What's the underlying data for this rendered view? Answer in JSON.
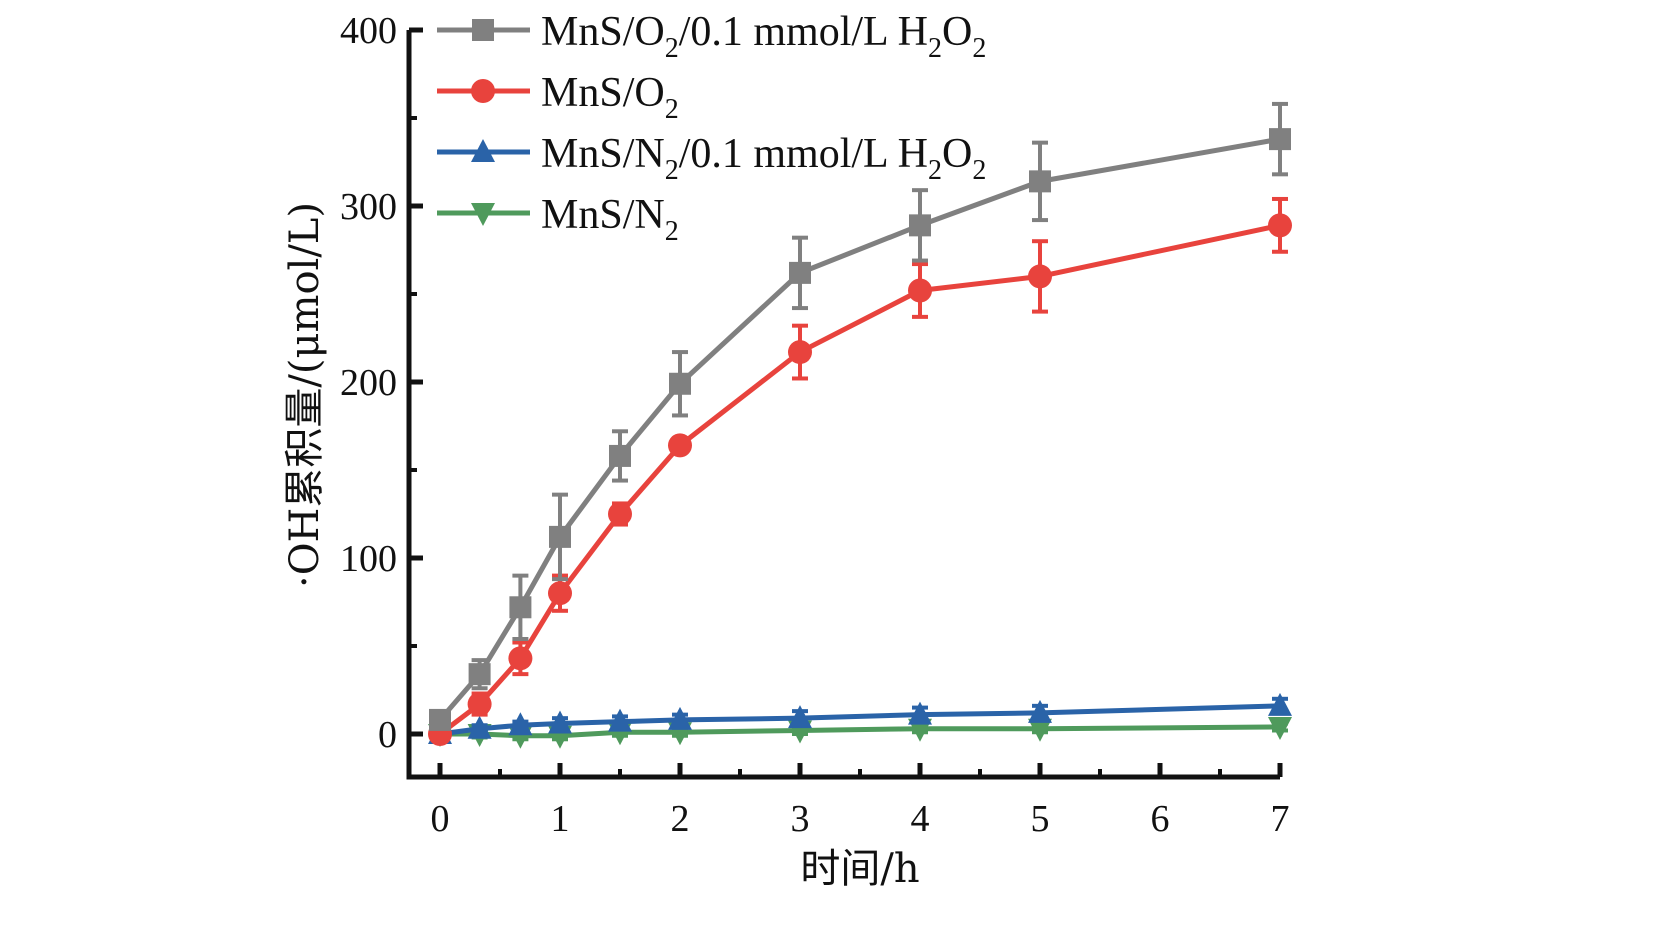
{
  "chart_data": {
    "type": "line",
    "title": "",
    "xlabel": "时间/h",
    "ylabel": "·OH累积量/(μmol/L)",
    "x": [
      0,
      0.33,
      0.67,
      1,
      1.5,
      2,
      3,
      4,
      5,
      7
    ],
    "x_ticks": [
      0,
      1,
      2,
      3,
      4,
      5,
      6,
      7
    ],
    "x_tick_labels": [
      "0",
      "1",
      "2",
      "3",
      "4",
      "5",
      "6",
      "7"
    ],
    "y_ticks": [
      0,
      100,
      200,
      300,
      400
    ],
    "y_tick_labels": [
      "0",
      "100",
      "200",
      "300",
      "400"
    ],
    "xlim": [
      -0.25,
      7
    ],
    "ylim": [
      -25,
      400
    ],
    "grid": false,
    "legend_position": "top-left",
    "series": [
      {
        "name": "MnS/O2/0.1 mmol/L H2O2",
        "legend_parts": [
          [
            "MnS/O",
            ""
          ],
          [
            "2",
            "sub"
          ],
          [
            "/0.1 mmol/L H",
            ""
          ],
          [
            "2",
            "sub"
          ],
          [
            "O",
            ""
          ],
          [
            "2",
            "sub"
          ]
        ],
        "marker": "square",
        "color": "#808080",
        "values": [
          8,
          34,
          72,
          112,
          158,
          199,
          262,
          289,
          314,
          338
        ],
        "errors": [
          3,
          8,
          18,
          24,
          14,
          18,
          20,
          20,
          22,
          20
        ]
      },
      {
        "name": "MnS/O2",
        "legend_parts": [
          [
            "MnS/O",
            ""
          ],
          [
            "2",
            "sub"
          ]
        ],
        "marker": "circle",
        "color": "#e8433d",
        "values": [
          0,
          17,
          43,
          80,
          125,
          164,
          217,
          252,
          260,
          289
        ],
        "errors": [
          2,
          6,
          9,
          10,
          6,
          4,
          15,
          15,
          20,
          15
        ]
      },
      {
        "name": "MnS/N2/0.1 mmol/L H2O2",
        "legend_parts": [
          [
            "MnS/N",
            ""
          ],
          [
            "2",
            "sub"
          ],
          [
            "/0.1 mmol/L H",
            ""
          ],
          [
            "2",
            "sub"
          ],
          [
            "O",
            ""
          ],
          [
            "2",
            "sub"
          ]
        ],
        "marker": "triangle-up",
        "color": "#2a63a8",
        "values": [
          0,
          3,
          5,
          6,
          7,
          8,
          9,
          11,
          12,
          16
        ],
        "errors": [
          2,
          2,
          2,
          3,
          3,
          3,
          4,
          4,
          4,
          4
        ]
      },
      {
        "name": "MnS/N2",
        "legend_parts": [
          [
            "MnS/N",
            ""
          ],
          [
            "2",
            "sub"
          ]
        ],
        "marker": "triangle-down",
        "color": "#4f9a5c",
        "values": [
          0,
          0,
          -1,
          -1,
          1,
          1,
          2,
          3,
          3,
          4
        ],
        "errors": [
          2,
          2,
          2,
          2,
          2,
          2,
          2,
          2,
          2,
          2
        ]
      }
    ]
  }
}
